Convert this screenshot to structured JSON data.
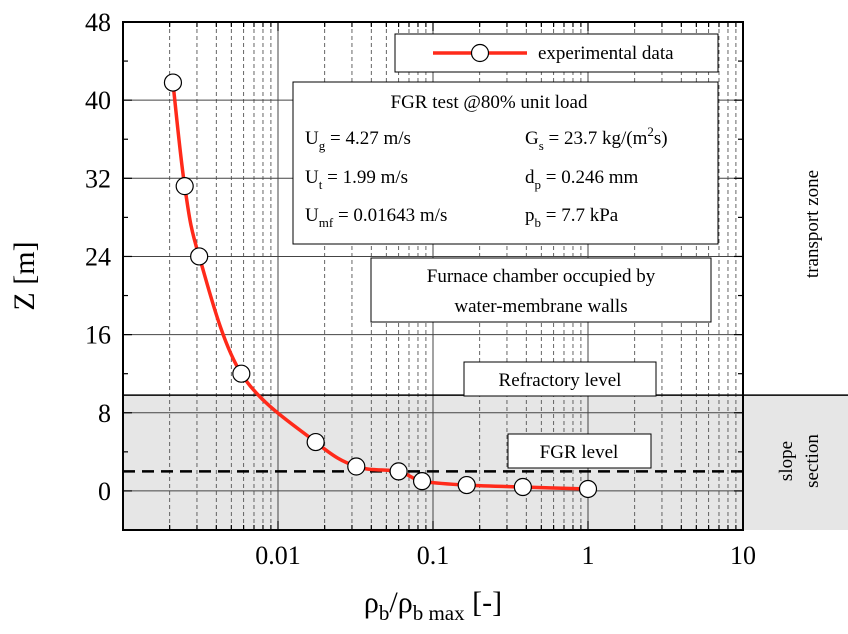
{
  "chart_data": {
    "type": "scatter",
    "xscale": "log",
    "xlim": [
      0.001,
      10
    ],
    "ylim": [
      -4,
      48
    ],
    "xticks": [
      {
        "value": 0.01,
        "label": "0.01"
      },
      {
        "value": 0.1,
        "label": "0.1"
      },
      {
        "value": 1,
        "label": "1"
      },
      {
        "value": 10,
        "label": "10"
      }
    ],
    "yticks": [
      {
        "value": 0,
        "label": "0"
      },
      {
        "value": 8,
        "label": "8"
      },
      {
        "value": 16,
        "label": "16"
      },
      {
        "value": 24,
        "label": "24"
      },
      {
        "value": 32,
        "label": "32"
      },
      {
        "value": 40,
        "label": "40"
      },
      {
        "value": 48,
        "label": "48"
      }
    ],
    "xlabel": {
      "main": "ρ",
      "sub1": "b",
      "mid": "/ρ",
      "sub2": "b max",
      "tail": " [-]"
    },
    "ylabel": "Z [m]",
    "grid": true,
    "legend": {
      "position": "top-right",
      "entries": [
        "experimental data"
      ]
    },
    "series": [
      {
        "name": "experimental data",
        "color": "#ff2a1a",
        "x": [
          0.0021,
          0.0025,
          0.0031,
          0.0058,
          0.0175,
          0.032,
          0.06,
          0.085,
          0.165,
          0.38,
          1.0
        ],
        "y": [
          41.8,
          31.2,
          24.0,
          12.0,
          5.0,
          2.5,
          2.0,
          1.0,
          0.6,
          0.4,
          0.2
        ]
      }
    ],
    "zones": [
      {
        "label": "transport zone",
        "y_range": [
          9.8,
          48
        ]
      },
      {
        "label_lines": [
          "slope",
          "section"
        ],
        "y_range": [
          -4,
          9.8
        ],
        "shaded": true,
        "color": "#e6e6e6"
      }
    ],
    "reference_lines": [
      {
        "label": "FGR level",
        "y": 2.0,
        "style": "dashed"
      },
      {
        "label": "Refractory level",
        "y": 9.8,
        "style": "solid"
      }
    ],
    "annotations": {
      "test_box": {
        "title": "FGR test @80% unit load",
        "params": [
          {
            "sym": "U",
            "sub": "g",
            "rest": " = 4.27 m/s"
          },
          {
            "sym": "G",
            "sub": "s",
            "rest": " = 23.7 kg/(m",
            "sup": "2",
            "rest2": "s)"
          },
          {
            "sym": "U",
            "sub": "t",
            "rest": " = 1.99 m/s"
          },
          {
            "sym": "d",
            "sub": "p",
            "rest": " = 0.246 mm"
          },
          {
            "sym": "U",
            "sub": "mf",
            "rest": " = 0.01643 m/s"
          },
          {
            "sym": "p",
            "sub": "b",
            "rest": " = 7.7 kPa"
          }
        ]
      },
      "furnace_box": [
        "Furnace chamber occupied by",
        "water-membrane walls"
      ],
      "refractory_label": "Refractory level",
      "fgr_label": "FGR level"
    }
  }
}
